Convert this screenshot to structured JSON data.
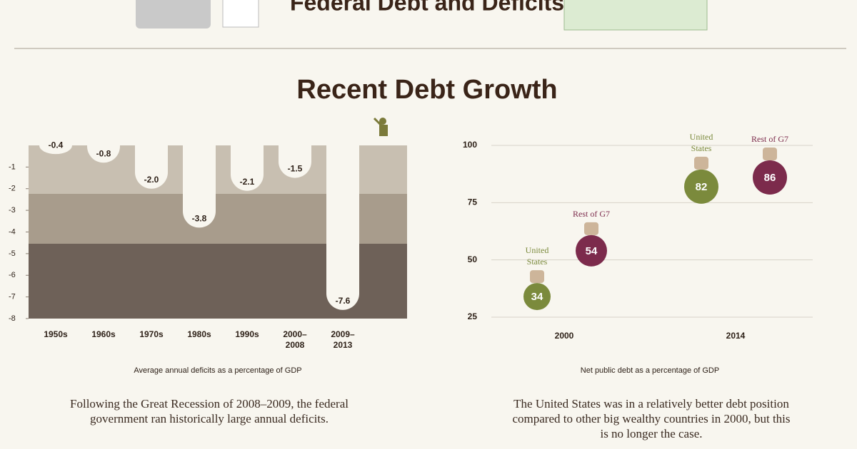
{
  "title": "Federal Debt and Deficits",
  "section_title": "Recent Debt Growth",
  "chart_data": [
    {
      "type": "bar",
      "caption": "Average annual deficits as a percentage of GDP",
      "note": "Following the Great Recession of 2008–2009, the federal government ran historically large annual deficits.",
      "categories": [
        "1950s",
        "1960s",
        "1970s",
        "1980s",
        "1990s",
        "2000–2008",
        "2009–2013"
      ],
      "values": [
        -0.4,
        -0.8,
        -2.0,
        -3.8,
        -2.1,
        -1.5,
        -7.6
      ],
      "value_labels": [
        "-0.4",
        "-0.8",
        "-2.0",
        "-3.8",
        "-2.1",
        "-1.5",
        "-7.6"
      ],
      "ylim": [
        -8,
        0
      ],
      "yticks": [
        -1,
        -2,
        -3,
        -4,
        -5,
        -6,
        -7,
        -8
      ]
    },
    {
      "type": "bubble",
      "caption": "Net public debt as a percentage of GDP",
      "note": "The United States was in a relatively better debt position compared to other big wealthy countries in 2000, but this is no longer the case.",
      "categories": [
        "2000",
        "2014"
      ],
      "series": [
        {
          "name": "United States",
          "color": "#7b8a3c",
          "values": [
            34,
            82
          ]
        },
        {
          "name": "Rest of G7",
          "color": "#7c2b4c",
          "values": [
            54,
            86
          ]
        }
      ],
      "ylim": [
        25,
        100
      ],
      "yticks": [
        25,
        50,
        75,
        100
      ],
      "grid": true
    }
  ]
}
